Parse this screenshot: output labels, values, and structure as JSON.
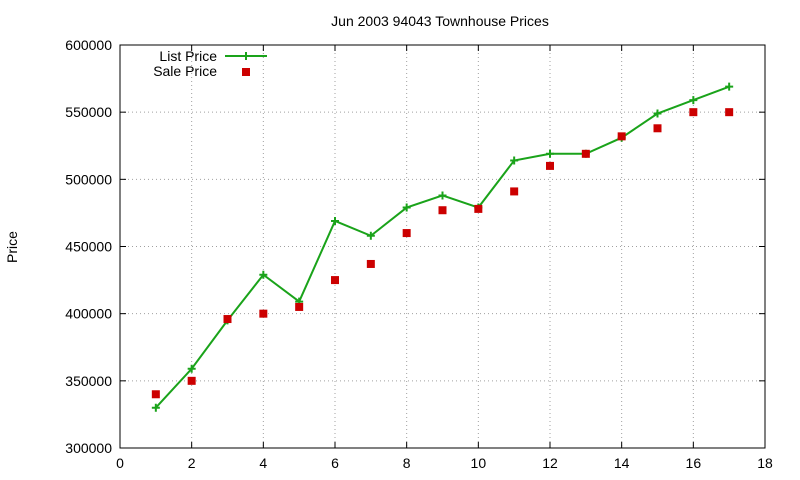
{
  "chart_data": {
    "type": "line",
    "title": "Jun 2003 94043 Townhouse Prices",
    "xlabel": "",
    "ylabel": "Price",
    "xlim": [
      0,
      18
    ],
    "ylim": [
      300000,
      600000
    ],
    "xticks": [
      0,
      2,
      4,
      6,
      8,
      10,
      12,
      14,
      16,
      18
    ],
    "yticks": [
      300000,
      350000,
      400000,
      450000,
      500000,
      550000,
      600000
    ],
    "grid": true,
    "legend_position": "top-left",
    "series": [
      {
        "name": "List Price",
        "style": "line+cross",
        "color": "#1aa31a",
        "points": [
          [
            1,
            330000
          ],
          [
            2,
            359000
          ],
          [
            3,
            395000
          ],
          [
            4,
            429000
          ],
          [
            5,
            409000
          ],
          [
            6,
            469000
          ],
          [
            7,
            458000
          ],
          [
            8,
            479000
          ],
          [
            9,
            488000
          ],
          [
            10,
            479000
          ],
          [
            11,
            514000
          ],
          [
            12,
            519000
          ],
          [
            13,
            519000
          ],
          [
            14,
            531000
          ],
          [
            15,
            549000
          ],
          [
            16,
            559000
          ],
          [
            17,
            569000
          ]
        ]
      },
      {
        "name": "Sale Price",
        "style": "square",
        "color": "#cc0000",
        "points": [
          [
            1,
            340000
          ],
          [
            2,
            350000
          ],
          [
            3,
            396000
          ],
          [
            4,
            400000
          ],
          [
            5,
            405000
          ],
          [
            6,
            425000
          ],
          [
            7,
            437000
          ],
          [
            8,
            460000
          ],
          [
            9,
            477000
          ],
          [
            10,
            478000
          ],
          [
            11,
            491000
          ],
          [
            12,
            510000
          ],
          [
            13,
            519000
          ],
          [
            14,
            532000
          ],
          [
            15,
            538000
          ],
          [
            16,
            550000
          ],
          [
            17,
            550000
          ]
        ]
      }
    ]
  }
}
